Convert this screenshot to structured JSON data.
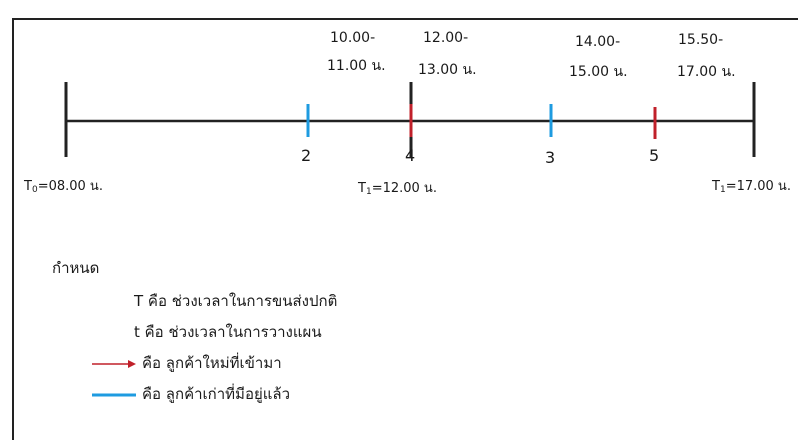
{
  "timeline": {
    "start_label": {
      "main": "T",
      "sub": "0",
      "rest": "=08.00 น."
    },
    "mid_label": {
      "main": "T",
      "sub": "1",
      "rest": "=12.00 น."
    },
    "end_label": {
      "main": "T",
      "sub": "1",
      "rest": "=17.00 น."
    },
    "markers": [
      {
        "number": "2",
        "type": "existing"
      },
      {
        "number": "4",
        "type": "new",
        "time_line1": "12.00-",
        "time_line2": "13.00 น."
      },
      {
        "number": "3",
        "type": "existing",
        "time_line1": "14.00-",
        "time_line2": "15.00 น."
      },
      {
        "number": "5",
        "type": "new",
        "time_line1": "15.50-",
        "time_line2": "17.00 น."
      }
    ],
    "extra_time": {
      "line1": "10.00-",
      "line2": "11.00 น."
    }
  },
  "legend": {
    "title": "กำหนด",
    "items": [
      {
        "text": "T คือ ช่วงเวลาในการขนส่งปกติ"
      },
      {
        "text": "t คือ ช่วงเวลาในการวางแผน"
      },
      {
        "text": "คือ ลูกค้าใหม่ที่เข้ามา",
        "marker": "red-arrow"
      },
      {
        "text": "คือ ลูกค้าเก่าที่มีอยู่แล้ว",
        "marker": "blue-line"
      }
    ]
  },
  "colors": {
    "new_customer": "#c0202a",
    "existing_customer": "#1e9be0",
    "axis": "#222222"
  }
}
